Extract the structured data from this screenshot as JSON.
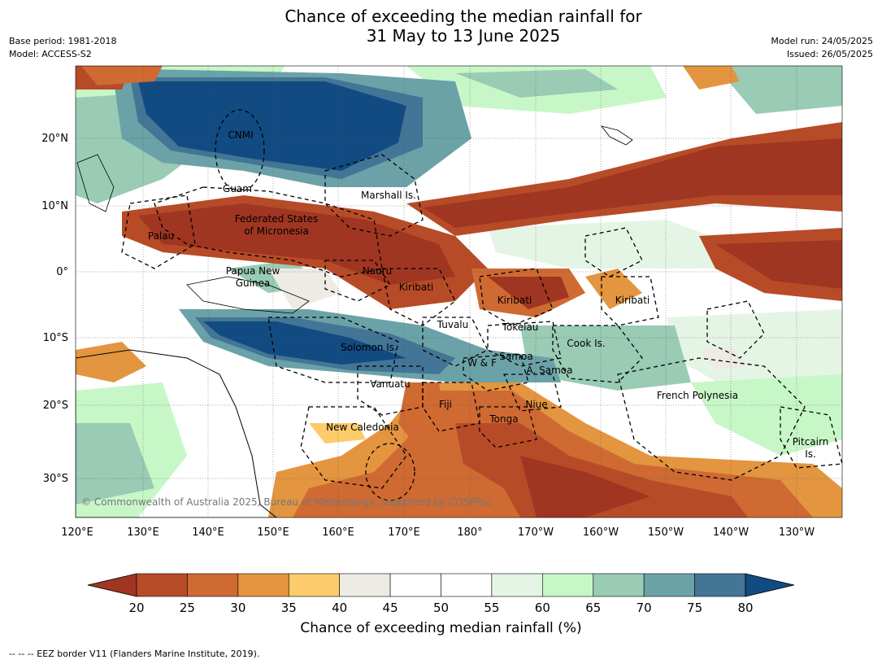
{
  "title_line1": "Chance of exceeding the median rainfall for",
  "title_line2": "31 May to 13 June 2025",
  "base_period": "Base period: 1981-2018",
  "model": "Model: ACCESS-S2",
  "model_run": "Model run: 24/05/2025",
  "issued": "Issued: 26/05/2025",
  "copyright": "© Commonwealth of Australia 2025, Bureau of Meteorology, supported by COSPPac",
  "lat_ticks": [
    "20°N",
    "10°N",
    "0°",
    "10°S",
    "20°S",
    "30°S"
  ],
  "lon_ticks": [
    "120°E",
    "130°E",
    "140°E",
    "150°E",
    "160°E",
    "170°E",
    "180°",
    "170°W",
    "160°W",
    "150°W",
    "140°W",
    "130°W"
  ],
  "regions": [
    "CNMI",
    "Guam",
    "Marshall Is.",
    "Federated States",
    "of Micronesia",
    "Palau",
    "Papua New",
    "Guinea",
    "Nauru",
    "Kiribati",
    "Kiribati",
    "Kiribati",
    "Tuvalu",
    "Tokelau",
    "Cook Is.",
    "Solomon Is.",
    "W & F",
    "Samoa",
    "A. Samoa",
    "Vanuatu",
    "Fiji",
    "Niue",
    "French Polynesia",
    "New Caledonia",
    "Tonga",
    "Pitcairn",
    "Is."
  ],
  "colorbar": {
    "ticks": [
      "20",
      "25",
      "30",
      "35",
      "40",
      "45",
      "50",
      "55",
      "60",
      "65",
      "70",
      "75",
      "80"
    ],
    "colors": [
      "#a03621",
      "#b84b27",
      "#cf6a32",
      "#e3953f",
      "#fccb6a",
      "#eeebe5",
      "#ffffff",
      "#ffffff",
      "#e5f5e5",
      "#c7f7c7",
      "#99cbb5",
      "#6ba2a8",
      "#437596",
      "#124b82"
    ],
    "label": "Chance of exceeding median rainfall (%)"
  },
  "footnote": "--  --  -- EEZ border V11 (Flanders Marine Institute, 2019)."
}
